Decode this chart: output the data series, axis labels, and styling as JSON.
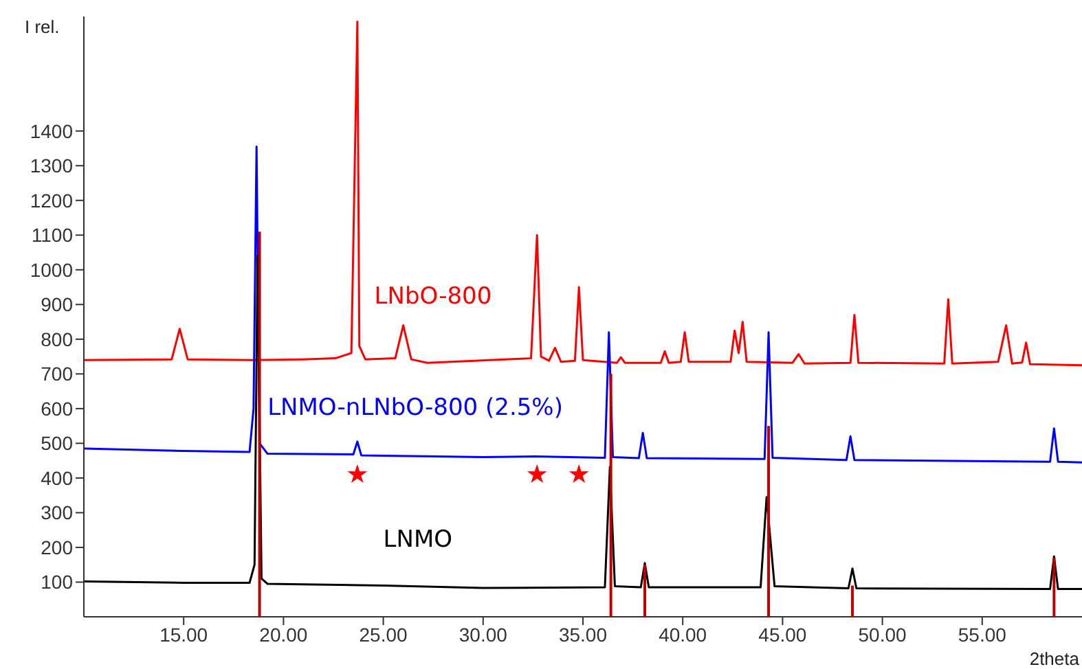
{
  "chart_data": {
    "type": "line",
    "ylabel": "I rel.",
    "xlabel": "2theta",
    "xlim": [
      10,
      60
    ],
    "ylim": [
      0,
      1730
    ],
    "xticks": [
      {
        "value": 15,
        "label": "15.00"
      },
      {
        "value": 20,
        "label": "20.00"
      },
      {
        "value": 25,
        "label": "25.00"
      },
      {
        "value": 30,
        "label": "30.00"
      },
      {
        "value": 35,
        "label": "35.00"
      },
      {
        "value": 40,
        "label": "40.00"
      },
      {
        "value": 45,
        "label": "45.00"
      },
      {
        "value": 50,
        "label": "50.00"
      },
      {
        "value": 55,
        "label": "55.00"
      }
    ],
    "yticks": [
      100,
      200,
      300,
      400,
      500,
      600,
      700,
      800,
      900,
      1000,
      1100,
      1200,
      1300,
      1400
    ],
    "marker": "none",
    "line_style": "solid",
    "series": [
      {
        "name": "LNbO-800",
        "color": "#ff0000",
        "x": [
          10,
          14.4,
          14.8,
          15.2,
          18.5,
          21,
          22.6,
          23.4,
          23.7,
          23.8,
          24.1,
          25.6,
          26.0,
          26.4,
          27.2,
          32.4,
          32.7,
          32.9,
          33.3,
          33.6,
          33.9,
          34.6,
          34.8,
          35.0,
          36.7,
          36.9,
          37.1,
          38.9,
          39.1,
          39.3,
          39.9,
          40.1,
          40.3,
          42.4,
          42.6,
          42.8,
          43.0,
          43.2,
          45.5,
          45.8,
          46.1,
          48.4,
          48.6,
          48.8,
          53.1,
          53.3,
          53.5,
          55.8,
          56.2,
          56.5,
          57.0,
          57.2,
          57.4,
          60
        ],
        "values": [
          740,
          742,
          830,
          742,
          740,
          742,
          745,
          760,
          1715,
          780,
          742,
          745,
          840,
          742,
          732,
          745,
          1100,
          750,
          738,
          775,
          735,
          738,
          950,
          740,
          732,
          748,
          732,
          732,
          765,
          732,
          735,
          820,
          735,
          735,
          825,
          760,
          850,
          735,
          732,
          757,
          730,
          732,
          870,
          732,
          730,
          915,
          730,
          735,
          840,
          730,
          733,
          790,
          728,
          725
        ]
      },
      {
        "name": "LNMO-nLNbO-800 (2.5%)",
        "color": "#0000ff",
        "x": [
          10,
          15,
          18.3,
          18.5,
          18.65,
          18.8,
          19.2,
          23.5,
          23.7,
          23.9,
          30,
          32.6,
          36.1,
          36.3,
          36.5,
          37.8,
          38.0,
          38.2,
          44.1,
          44.3,
          44.5,
          48.2,
          48.4,
          48.6,
          58.4,
          58.6,
          58.8,
          60
        ],
        "values": [
          485,
          478,
          475,
          600,
          1355,
          500,
          470,
          468,
          505,
          465,
          460,
          462,
          458,
          820,
          460,
          457,
          530,
          457,
          455,
          820,
          458,
          452,
          520,
          452,
          447,
          543,
          447,
          445
        ]
      },
      {
        "name": "LNMO",
        "color": "#000000",
        "x": [
          10,
          15,
          18.3,
          18.55,
          18.7,
          18.9,
          19.2,
          25,
          30,
          36.1,
          36.35,
          36.6,
          37.9,
          38.1,
          38.3,
          43.9,
          44.2,
          44.6,
          48.3,
          48.5,
          48.7,
          58.4,
          58.6,
          58.8,
          60
        ],
        "values": [
          102,
          98,
          98,
          150,
          1040,
          110,
          95,
          90,
          83,
          85,
          432,
          88,
          85,
          155,
          85,
          85,
          345,
          88,
          82,
          139,
          82,
          80,
          174,
          80,
          80
        ]
      },
      {
        "type": "bar",
        "color": "#c00000",
        "x": [
          18.8,
          36.4,
          38.1,
          44.3,
          48.5,
          58.6
        ],
        "values": [
          1110,
          700,
          150,
          550,
          90,
          170
        ]
      },
      {
        "type": "scatter",
        "marker": "star",
        "color": "#ff0000",
        "x": [
          23.7,
          32.7,
          34.8
        ],
        "values": [
          410,
          410,
          410
        ]
      }
    ]
  }
}
